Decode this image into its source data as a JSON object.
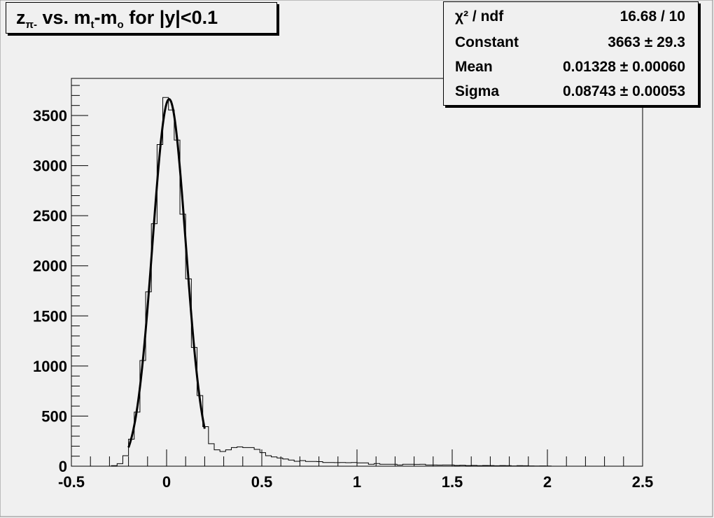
{
  "title": {
    "main": "z",
    "sub1": "π-",
    "mid": " vs. m",
    "sub2": "t",
    "mid2": "-m",
    "sub3": "o",
    "tail": " for |y|<0.1"
  },
  "stats": [
    {
      "label": "χ² / ndf",
      "value": "16.68 / 10"
    },
    {
      "label": "Constant",
      "value": "3663 ± 29.3"
    },
    {
      "label": "Mean",
      "value": "0.01328 ± 0.00060"
    },
    {
      "label": "Sigma",
      "value": "0.08743 ± 0.00053"
    }
  ],
  "colors": {
    "background": "#f0f0f0",
    "line": "#000000"
  },
  "chart_data": {
    "type": "histogram",
    "title": "zπ- vs. mt-mo for |y|<0.1",
    "xlabel": "",
    "ylabel": "",
    "xlim": [
      -0.5,
      2.5
    ],
    "ylim": [
      0,
      3850
    ],
    "grid": false,
    "x_ticks": [
      "-0.5",
      "0",
      "0.5",
      "1",
      "1.5",
      "2",
      "2.5"
    ],
    "y_ticks": [
      "0",
      "500",
      "1000",
      "1500",
      "2000",
      "2500",
      "3000",
      "3500"
    ],
    "bin_edges_range": [
      -0.5,
      2.5
    ],
    "nbins": 100,
    "values": [
      0,
      0,
      0,
      0,
      0,
      0,
      0,
      5,
      25,
      105,
      270,
      540,
      1055,
      1740,
      2420,
      3210,
      3680,
      3555,
      3255,
      2515,
      1870,
      1185,
      705,
      395,
      224,
      163,
      147,
      163,
      186,
      193,
      186,
      186,
      168,
      135,
      105,
      93,
      82,
      72,
      61,
      49,
      56,
      47,
      47,
      45,
      37,
      37,
      36,
      37,
      35,
      37,
      33,
      33,
      19,
      26,
      19,
      19,
      19,
      12,
      19,
      19,
      18,
      19,
      12,
      12,
      11,
      12,
      12,
      8,
      10,
      6,
      8,
      5,
      7,
      6,
      4,
      6,
      5,
      3,
      5,
      4,
      3,
      2,
      3,
      2,
      0,
      0,
      0,
      0,
      0,
      0,
      0,
      0,
      0,
      0,
      0,
      0,
      0,
      0,
      0,
      0
    ],
    "fit": {
      "function": "gaus",
      "constant": 3663,
      "mean": 0.01328,
      "sigma": 0.08743,
      "range": [
        -0.2,
        0.2
      ]
    }
  }
}
